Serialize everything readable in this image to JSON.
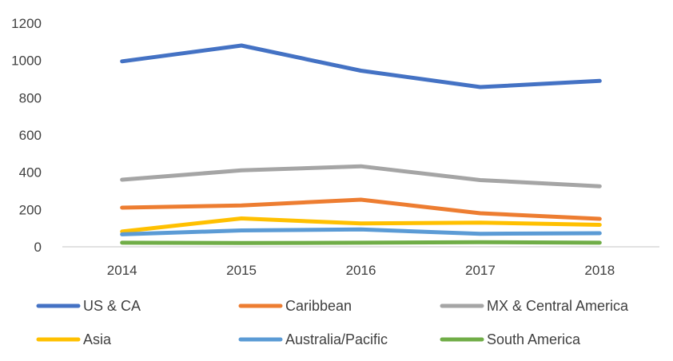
{
  "chart_data": {
    "type": "line",
    "title": "",
    "xlabel": "",
    "ylabel": "",
    "categories": [
      "2014",
      "2015",
      "2016",
      "2017",
      "2018"
    ],
    "ylim": [
      0,
      1200
    ],
    "yticks": [
      "0",
      "200",
      "400",
      "600",
      "800",
      "1000",
      "1200"
    ],
    "grid": false,
    "legend_position": "bottom",
    "series": [
      {
        "name": "US & CA",
        "color": "#4472C4",
        "values": [
          995,
          1080,
          945,
          857,
          890
        ]
      },
      {
        "name": "Caribbean",
        "color": "#ED7D31",
        "values": [
          210,
          222,
          253,
          180,
          150
        ]
      },
      {
        "name": "MX & Central America",
        "color": "#A5A5A5",
        "values": [
          360,
          410,
          432,
          358,
          325
        ]
      },
      {
        "name": "Asia",
        "color": "#FFC000",
        "values": [
          82,
          152,
          125,
          130,
          118
        ]
      },
      {
        "name": "Australia/Pacific",
        "color": "#5B9BD5",
        "values": [
          67,
          88,
          93,
          70,
          73
        ]
      },
      {
        "name": "South America",
        "color": "#70AD47",
        "values": [
          22,
          20,
          22,
          25,
          22
        ]
      }
    ]
  }
}
